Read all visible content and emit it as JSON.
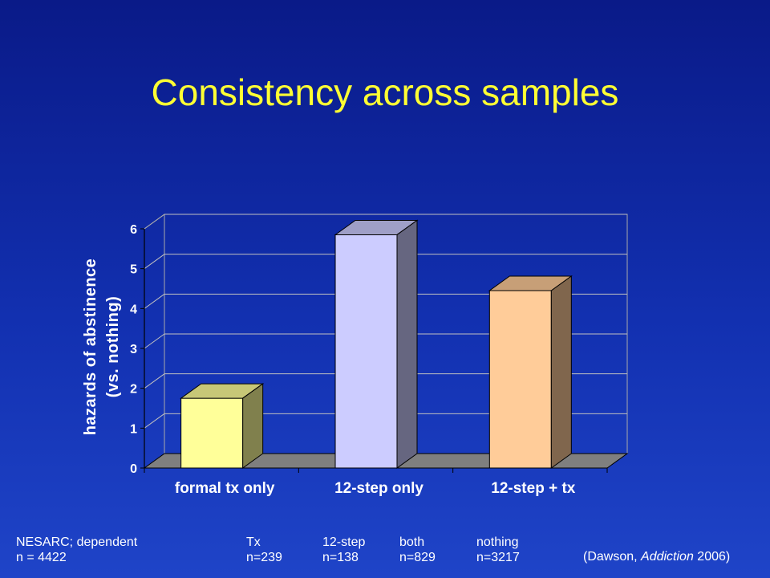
{
  "slide": {
    "title": "Consistency across samples"
  },
  "chart_data": {
    "type": "bar",
    "style": "3d",
    "categories": [
      "formal tx only",
      "12-step only",
      "12-step + tx"
    ],
    "values": [
      1.75,
      5.85,
      4.45
    ],
    "colors": [
      "#ffff99",
      "#ccccff",
      "#ffcc99"
    ],
    "ylabel": "hazards of abstinence (vs. nothing)",
    "ylabel_lines": [
      "hazards of abstinence",
      "(vs. nothing)"
    ],
    "ylim": [
      0,
      6
    ],
    "yticks": [
      0,
      1,
      2,
      3,
      4,
      5,
      6
    ],
    "grid": true,
    "legend": "none"
  },
  "footer": {
    "columns": [
      [
        "NESARC; dependent",
        "n = 4422"
      ],
      [
        "Tx",
        "n=239"
      ],
      [
        "12-step",
        "n=138"
      ],
      [
        "both",
        "n=829"
      ],
      [
        "nothing",
        "n=3217"
      ]
    ],
    "citation_prefix": "(Dawson, ",
    "citation_journal": "Addiction",
    "citation_suffix": " 2006)"
  }
}
